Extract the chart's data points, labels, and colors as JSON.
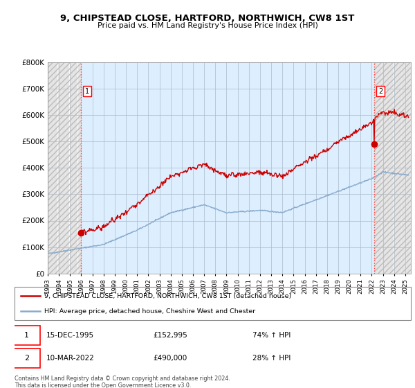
{
  "title": "9, CHIPSTEAD CLOSE, HARTFORD, NORTHWICH, CW8 1ST",
  "subtitle": "Price paid vs. HM Land Registry's House Price Index (HPI)",
  "ylim": [
    0,
    800000
  ],
  "yticks": [
    0,
    100000,
    200000,
    300000,
    400000,
    500000,
    600000,
    700000,
    800000
  ],
  "ytick_labels": [
    "£0",
    "£100K",
    "£200K",
    "£300K",
    "£400K",
    "£500K",
    "£600K",
    "£700K",
    "£800K"
  ],
  "xmin": 1993,
  "xmax": 2025.5,
  "sale1_date": 1995.96,
  "sale1_price": 152995,
  "sale2_date": 2022.19,
  "sale2_price": 490000,
  "legend_line1": "9, CHIPSTEAD CLOSE, HARTFORD, NORTHWICH, CW8 1ST (detached house)",
  "legend_line2": "HPI: Average price, detached house, Cheshire West and Chester",
  "annotation1_date": "15-DEC-1995",
  "annotation1_price": "£152,995",
  "annotation1_hpi": "74% ↑ HPI",
  "annotation2_date": "10-MAR-2022",
  "annotation2_price": "£490,000",
  "annotation2_hpi": "28% ↑ HPI",
  "footer": "Contains HM Land Registry data © Crown copyright and database right 2024.\nThis data is licensed under the Open Government Licence v3.0.",
  "plot_bg": "#ddeeff",
  "hatch_bg": "#ffffff",
  "red_color": "#cc0000",
  "blue_color": "#88aacc",
  "grid_color": "#aabbcc",
  "hatch_edge": "#bbbbbb",
  "dashed_red": "#ff6666"
}
